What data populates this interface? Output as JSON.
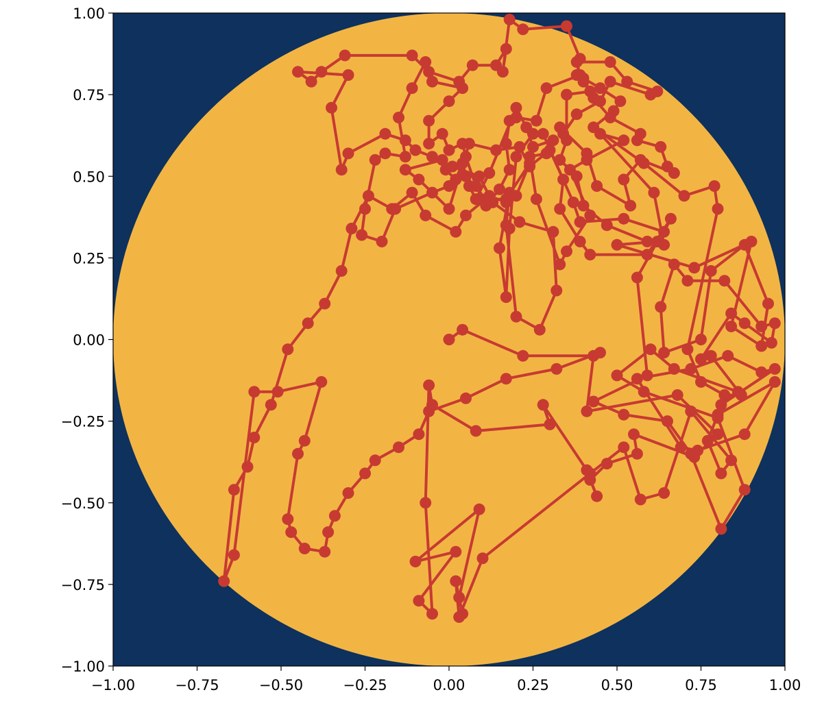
{
  "chart_data": {
    "type": "line",
    "title": "",
    "xlabel": "",
    "ylabel": "",
    "xlim": [
      -1,
      1
    ],
    "ylim": [
      -1,
      1
    ],
    "aspect": "equal",
    "grid": false,
    "legend": "none",
    "x_ticks": [
      -1.0,
      -0.75,
      -0.5,
      -0.25,
      0.0,
      0.25,
      0.5,
      0.75,
      1.0
    ],
    "x_tick_labels": [
      "−1.00",
      "−0.75",
      "−0.50",
      "−0.25",
      "0.00",
      "0.25",
      "0.50",
      "0.75",
      "1.00"
    ],
    "y_ticks": [
      1.0,
      0.75,
      0.5,
      0.25,
      0.0,
      -0.25,
      -0.5,
      -0.75,
      -1.0
    ],
    "y_tick_labels": [
      "1.00",
      "0.75",
      "0.50",
      "0.25",
      "0.00",
      "−0.25",
      "−0.50",
      "−0.75",
      "−1.00"
    ],
    "background": {
      "color": "#0e315d"
    },
    "circle": {
      "center": [
        0,
        0
      ],
      "radius": 1,
      "color": "#f2b544"
    },
    "series": [
      {
        "color": "#c73a32",
        "marker": "circle",
        "points": [
          [
            0.0,
            0.0
          ],
          [
            0.04,
            0.03
          ],
          [
            0.22,
            -0.05
          ],
          [
            0.43,
            -0.05
          ],
          [
            0.41,
            -0.22
          ],
          [
            0.68,
            -0.17
          ],
          [
            0.8,
            -0.29
          ],
          [
            0.73,
            -0.36
          ],
          [
            0.55,
            -0.29
          ],
          [
            0.56,
            -0.35
          ],
          [
            0.47,
            -0.38
          ],
          [
            0.42,
            -0.43
          ],
          [
            0.44,
            -0.48
          ],
          [
            0.41,
            -0.4
          ],
          [
            0.28,
            -0.2
          ],
          [
            0.3,
            -0.26
          ],
          [
            0.08,
            -0.28
          ],
          [
            -0.05,
            -0.2
          ],
          [
            -0.06,
            -0.14
          ],
          [
            -0.07,
            -0.5
          ],
          [
            -0.05,
            -0.84
          ],
          [
            -0.09,
            -0.8
          ],
          [
            0.02,
            -0.65
          ],
          [
            -0.1,
            -0.68
          ],
          [
            0.09,
            -0.52
          ],
          [
            0.03,
            -0.79
          ],
          [
            0.04,
            -0.84
          ],
          [
            0.02,
            -0.74
          ],
          [
            0.03,
            -0.85
          ],
          [
            0.1,
            -0.67
          ],
          [
            0.42,
            -0.41
          ],
          [
            0.52,
            -0.33
          ],
          [
            0.57,
            -0.49
          ],
          [
            0.64,
            -0.47
          ],
          [
            0.72,
            -0.22
          ],
          [
            0.84,
            -0.37
          ],
          [
            0.81,
            -0.41
          ],
          [
            0.77,
            -0.31
          ],
          [
            0.8,
            -0.23
          ],
          [
            0.97,
            -0.13
          ],
          [
            0.88,
            -0.29
          ],
          [
            0.74,
            -0.34
          ],
          [
            0.69,
            -0.33
          ],
          [
            0.56,
            -0.12
          ],
          [
            0.72,
            -0.09
          ],
          [
            0.83,
            -0.05
          ],
          [
            0.93,
            -0.1
          ],
          [
            0.97,
            -0.09
          ],
          [
            0.81,
            -0.2
          ],
          [
            0.86,
            -0.16
          ],
          [
            0.67,
            -0.09
          ],
          [
            0.6,
            -0.03
          ],
          [
            0.5,
            -0.11
          ],
          [
            0.58,
            -0.16
          ],
          [
            0.8,
            -0.24
          ],
          [
            0.88,
            -0.46
          ],
          [
            0.81,
            -0.58
          ],
          [
            0.72,
            -0.35
          ],
          [
            0.65,
            -0.25
          ],
          [
            0.52,
            -0.23
          ],
          [
            0.43,
            -0.19
          ],
          [
            0.59,
            -0.11
          ],
          [
            0.56,
            0.19
          ],
          [
            0.62,
            0.3
          ],
          [
            0.5,
            0.29
          ],
          [
            0.73,
            0.22
          ],
          [
            0.9,
            0.3
          ],
          [
            0.84,
            0.04
          ],
          [
            0.93,
            -0.02
          ],
          [
            0.95,
            0.11
          ],
          [
            0.88,
            0.29
          ],
          [
            0.78,
            0.21
          ],
          [
            0.75,
            0.0
          ],
          [
            0.64,
            -0.04
          ],
          [
            0.63,
            0.1
          ],
          [
            0.67,
            0.23
          ],
          [
            0.71,
            0.18
          ],
          [
            0.82,
            0.18
          ],
          [
            0.93,
            0.04
          ],
          [
            0.97,
            0.05
          ],
          [
            0.96,
            -0.01
          ],
          [
            0.88,
            0.05
          ],
          [
            0.84,
            0.08
          ],
          [
            0.75,
            -0.06
          ],
          [
            0.78,
            -0.05
          ],
          [
            0.87,
            -0.17
          ],
          [
            0.82,
            -0.17
          ],
          [
            0.75,
            -0.13
          ],
          [
            0.71,
            -0.03
          ],
          [
            0.8,
            0.4
          ],
          [
            0.79,
            0.47
          ],
          [
            0.7,
            0.44
          ],
          [
            0.58,
            0.54
          ],
          [
            0.43,
            0.65
          ],
          [
            0.49,
            0.7
          ],
          [
            0.51,
            0.73
          ],
          [
            0.45,
            0.77
          ],
          [
            0.4,
            0.8
          ],
          [
            0.42,
            0.76
          ],
          [
            0.35,
            0.75
          ],
          [
            0.35,
            0.61
          ],
          [
            0.33,
            0.55
          ],
          [
            0.38,
            0.5
          ],
          [
            0.4,
            0.41
          ],
          [
            0.47,
            0.35
          ],
          [
            0.59,
            0.3
          ],
          [
            0.64,
            0.29
          ],
          [
            0.61,
            0.45
          ],
          [
            0.45,
            0.63
          ],
          [
            0.52,
            0.61
          ],
          [
            0.41,
            0.55
          ],
          [
            0.36,
            0.52
          ],
          [
            0.42,
            0.38
          ],
          [
            0.35,
            0.27
          ],
          [
            0.33,
            0.23
          ],
          [
            0.26,
            0.43
          ],
          [
            0.24,
            0.56
          ],
          [
            0.29,
            0.57
          ],
          [
            0.31,
            0.61
          ],
          [
            0.25,
            0.59
          ],
          [
            0.23,
            0.65
          ],
          [
            0.2,
            0.71
          ],
          [
            0.12,
            0.51
          ],
          [
            0.08,
            0.43
          ],
          [
            0.06,
            0.47
          ],
          [
            0.04,
            0.54
          ],
          [
            0.02,
            0.49
          ],
          [
            -0.01,
            0.52
          ],
          [
            -0.02,
            0.55
          ],
          [
            -0.13,
            0.52
          ],
          [
            -0.09,
            0.49
          ],
          [
            0.0,
            0.4
          ],
          [
            0.06,
            0.6
          ],
          [
            0.14,
            0.58
          ],
          [
            0.21,
            0.59
          ],
          [
            0.24,
            0.53
          ],
          [
            0.3,
            0.58
          ],
          [
            0.34,
            0.49
          ],
          [
            0.33,
            0.4
          ],
          [
            0.39,
            0.3
          ],
          [
            0.42,
            0.26
          ],
          [
            0.59,
            0.26
          ],
          [
            0.66,
            0.37
          ],
          [
            0.64,
            0.33
          ],
          [
            0.52,
            0.37
          ],
          [
            0.39,
            0.36
          ],
          [
            0.37,
            0.42
          ],
          [
            0.28,
            0.63
          ],
          [
            0.25,
            0.63
          ],
          [
            0.2,
            0.56
          ],
          [
            0.18,
            0.34
          ],
          [
            0.17,
            0.13
          ],
          [
            0.15,
            0.28
          ],
          [
            0.18,
            0.45
          ],
          [
            0.17,
            0.35
          ],
          [
            0.2,
            0.07
          ],
          [
            0.27,
            0.03
          ],
          [
            0.32,
            0.15
          ],
          [
            0.31,
            0.33
          ],
          [
            0.21,
            0.36
          ],
          [
            0.13,
            0.42
          ],
          [
            0.09,
            0.5
          ],
          [
            0.01,
            0.53
          ],
          [
            -0.05,
            0.56
          ],
          [
            -0.1,
            0.58
          ],
          [
            -0.13,
            0.61
          ],
          [
            -0.19,
            0.63
          ],
          [
            -0.3,
            0.57
          ],
          [
            -0.32,
            0.52
          ],
          [
            -0.35,
            0.71
          ],
          [
            -0.3,
            0.81
          ],
          [
            -0.45,
            0.82
          ],
          [
            -0.41,
            0.79
          ],
          [
            -0.38,
            0.82
          ],
          [
            -0.31,
            0.87
          ],
          [
            -0.11,
            0.87
          ],
          [
            -0.06,
            0.82
          ],
          [
            0.03,
            0.79
          ],
          [
            0.07,
            0.84
          ],
          [
            0.14,
            0.84
          ],
          [
            0.17,
            0.89
          ],
          [
            0.16,
            0.82
          ],
          [
            0.18,
            0.98
          ],
          [
            0.22,
            0.95
          ],
          [
            0.35,
            0.96
          ],
          [
            0.39,
            0.86
          ],
          [
            0.38,
            0.81
          ],
          [
            0.4,
            0.79
          ],
          [
            0.43,
            0.74
          ],
          [
            0.48,
            0.68
          ],
          [
            0.57,
            0.63
          ],
          [
            0.56,
            0.61
          ],
          [
            0.63,
            0.59
          ],
          [
            0.65,
            0.53
          ],
          [
            0.67,
            0.51
          ],
          [
            0.57,
            0.55
          ],
          [
            0.52,
            0.49
          ],
          [
            0.54,
            0.41
          ],
          [
            0.44,
            0.47
          ],
          [
            0.41,
            0.57
          ],
          [
            0.33,
            0.65
          ],
          [
            0.34,
            0.63
          ],
          [
            0.38,
            0.69
          ],
          [
            0.45,
            0.73
          ],
          [
            0.48,
            0.79
          ],
          [
            0.6,
            0.75
          ],
          [
            0.62,
            0.76
          ],
          [
            0.53,
            0.79
          ],
          [
            0.48,
            0.85
          ],
          [
            0.38,
            0.85
          ],
          [
            0.39,
            0.81
          ],
          [
            0.29,
            0.77
          ],
          [
            0.26,
            0.67
          ],
          [
            0.2,
            0.68
          ],
          [
            0.18,
            0.67
          ],
          [
            0.17,
            0.6
          ],
          [
            0.18,
            0.52
          ],
          [
            0.15,
            0.46
          ],
          [
            0.11,
            0.41
          ],
          [
            0.08,
            0.47
          ],
          [
            0.05,
            0.56
          ],
          [
            0.04,
            0.6
          ],
          [
            0.0,
            0.58
          ],
          [
            -0.02,
            0.63
          ],
          [
            -0.06,
            0.6
          ],
          [
            -0.06,
            0.67
          ],
          [
            0.0,
            0.73
          ],
          [
            0.04,
            0.77
          ],
          [
            -0.05,
            0.79
          ],
          [
            -0.07,
            0.85
          ],
          [
            -0.11,
            0.77
          ],
          [
            -0.15,
            0.68
          ],
          [
            -0.13,
            0.56
          ],
          [
            -0.19,
            0.57
          ],
          [
            -0.22,
            0.55
          ],
          [
            -0.25,
            0.4
          ],
          [
            -0.26,
            0.32
          ],
          [
            -0.2,
            0.3
          ],
          [
            -0.16,
            0.4
          ],
          [
            -0.05,
            0.45
          ],
          [
            0.0,
            0.47
          ],
          [
            0.05,
            0.5
          ],
          [
            0.11,
            0.43
          ],
          [
            0.17,
            0.43
          ],
          [
            0.24,
            0.54
          ],
          [
            0.2,
            0.44
          ],
          [
            0.17,
            0.42
          ],
          [
            0.12,
            0.44
          ],
          [
            0.05,
            0.38
          ],
          [
            0.02,
            0.33
          ],
          [
            -0.07,
            0.38
          ],
          [
            -0.11,
            0.45
          ],
          [
            -0.17,
            0.4
          ],
          [
            -0.24,
            0.44
          ],
          [
            -0.29,
            0.34
          ],
          [
            -0.32,
            0.21
          ],
          [
            -0.37,
            0.11
          ],
          [
            -0.42,
            0.05
          ],
          [
            -0.48,
            -0.03
          ],
          [
            -0.53,
            -0.2
          ],
          [
            -0.58,
            -0.3
          ],
          [
            -0.6,
            -0.39
          ],
          [
            -0.64,
            -0.46
          ],
          [
            -0.67,
            -0.74
          ],
          [
            -0.64,
            -0.66
          ],
          [
            -0.58,
            -0.16
          ],
          [
            -0.51,
            -0.16
          ],
          [
            -0.38,
            -0.13
          ],
          [
            -0.43,
            -0.31
          ],
          [
            -0.45,
            -0.35
          ],
          [
            -0.48,
            -0.55
          ],
          [
            -0.47,
            -0.59
          ],
          [
            -0.43,
            -0.64
          ],
          [
            -0.37,
            -0.65
          ],
          [
            -0.36,
            -0.59
          ],
          [
            -0.34,
            -0.54
          ],
          [
            -0.3,
            -0.47
          ],
          [
            -0.25,
            -0.41
          ],
          [
            -0.22,
            -0.37
          ],
          [
            -0.15,
            -0.33
          ],
          [
            -0.09,
            -0.29
          ],
          [
            -0.06,
            -0.22
          ],
          [
            0.05,
            -0.18
          ],
          [
            0.17,
            -0.12
          ],
          [
            0.32,
            -0.09
          ],
          [
            0.45,
            -0.04
          ]
        ]
      }
    ]
  }
}
